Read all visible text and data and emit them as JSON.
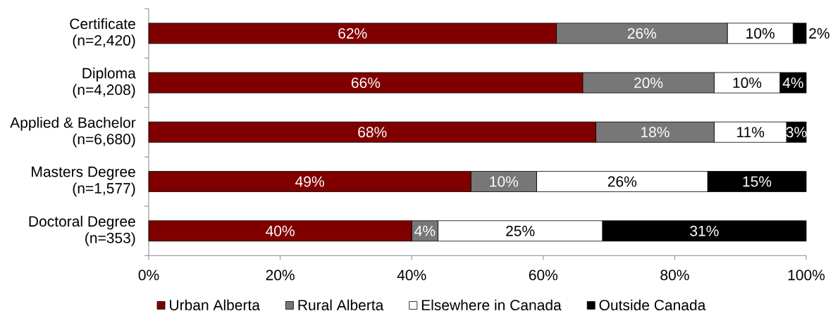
{
  "chart_data": {
    "type": "bar",
    "orientation": "horizontal",
    "stacked": true,
    "legend": "bottom",
    "categories": [
      "Certificate (n=2,420)",
      "Diploma (n=4,208)",
      "Applied & Bachelor (n=6,680)",
      "Masters Degree (n=1,577)",
      "Doctoral Degree (n=353)"
    ],
    "series": [
      {
        "name": "Urban Alberta",
        "color": "#800000",
        "values": [
          62,
          66,
          68,
          49,
          40
        ],
        "value_labels": [
          "62%",
          "66%",
          "68%",
          "49%",
          "40%"
        ]
      },
      {
        "name": "Rural Alberta",
        "color": "#777777",
        "values": [
          26,
          20,
          18,
          10,
          4
        ],
        "value_labels": [
          "26%",
          "20%",
          "18%",
          "10%",
          "4%"
        ]
      },
      {
        "name": "Elsewhere in Canada",
        "color": "#ffffff",
        "values": [
          10,
          10,
          11,
          26,
          25
        ],
        "value_labels": [
          "10%",
          "10%",
          "11%",
          "26%",
          "25%"
        ]
      },
      {
        "name": "Outside Canada",
        "color": "#000000",
        "values": [
          2,
          4,
          3,
          15,
          31
        ],
        "value_labels": [
          "2%",
          "4%",
          "3%",
          "15%",
          "31%"
        ]
      }
    ],
    "xlim": [
      0,
      100
    ],
    "xticks": [
      {
        "value": 0,
        "label": "0%"
      },
      {
        "value": 20,
        "label": "20%"
      },
      {
        "value": 40,
        "label": "40%"
      },
      {
        "value": 60,
        "label": "60%"
      },
      {
        "value": 80,
        "label": "80%"
      },
      {
        "value": 100,
        "label": "100%"
      }
    ]
  }
}
